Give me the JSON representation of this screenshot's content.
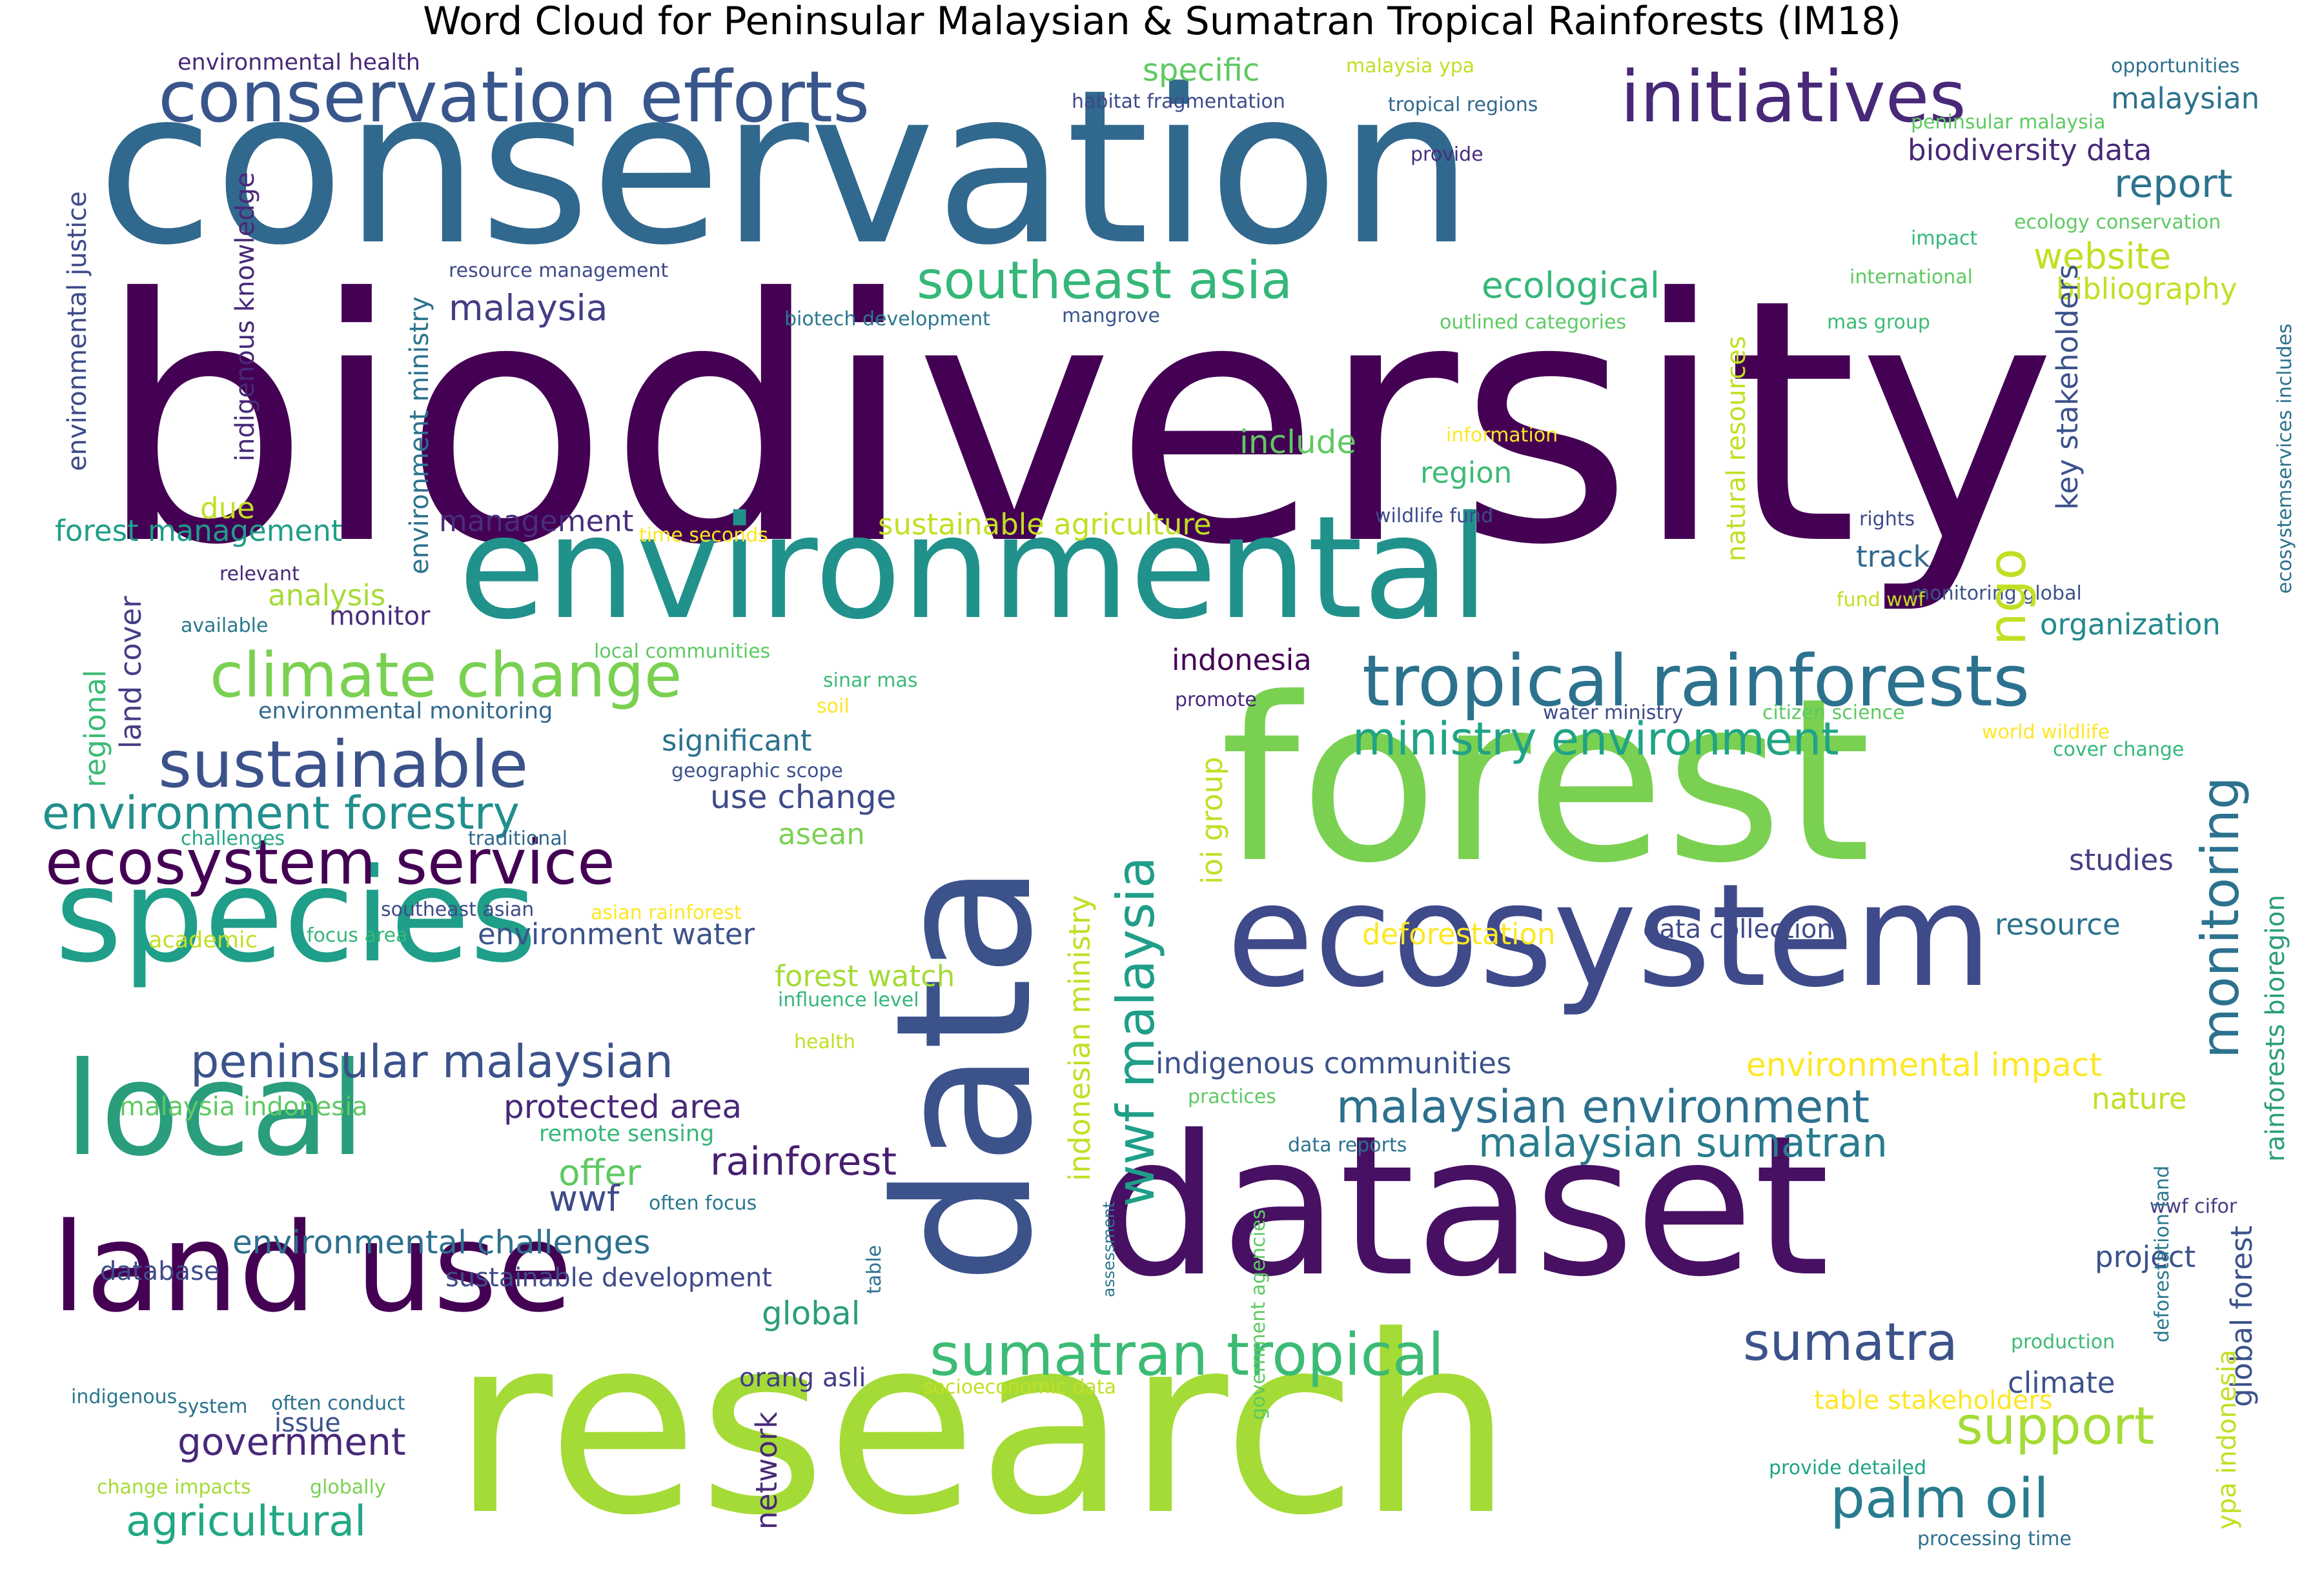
{
  "title": "Word Cloud for Peninsular Malaysian & Sumatran Tropical Rainforests (IM18)",
  "colormap": "viridis",
  "words": [
    {
      "text": "biodiversity",
      "color": "#440154",
      "vertical": false
    },
    {
      "text": "conservation",
      "color": "#31688e",
      "vertical": false
    },
    {
      "text": "research",
      "color": "#a5db36",
      "vertical": false
    },
    {
      "text": "forest",
      "color": "#7ad151",
      "vertical": false
    },
    {
      "text": "dataset",
      "color": "#471063",
      "vertical": false
    },
    {
      "text": "data",
      "color": "#3b528b",
      "vertical": true
    },
    {
      "text": "environmental",
      "color": "#21918c",
      "vertical": false
    },
    {
      "text": "ecosystem",
      "color": "#3e4a89",
      "vertical": false
    },
    {
      "text": "species",
      "color": "#1f9e89",
      "vertical": false
    },
    {
      "text": "land use",
      "color": "#440154",
      "vertical": false
    },
    {
      "text": "local",
      "color": "#2a9d7c",
      "vertical": false
    },
    {
      "text": "conservation efforts",
      "color": "#39568c",
      "vertical": false
    },
    {
      "text": "initiatives",
      "color": "#482878",
      "vertical": false
    },
    {
      "text": "tropical rainforests",
      "color": "#2c728e",
      "vertical": false
    },
    {
      "text": "sustainable",
      "color": "#3b528b",
      "vertical": false
    },
    {
      "text": "southeast asia",
      "color": "#35b779",
      "vertical": false
    },
    {
      "text": "climate change",
      "color": "#7ad151",
      "vertical": false
    },
    {
      "text": "ecosystem service",
      "color": "#440154",
      "vertical": false
    },
    {
      "text": "environment forestry",
      "color": "#218f8d",
      "vertical": false
    },
    {
      "text": "monitoring",
      "color": "#2c728e",
      "vertical": true
    },
    {
      "text": "wwf malaysia",
      "color": "#1f9e89",
      "vertical": true
    },
    {
      "text": "ministry environment",
      "color": "#20a386",
      "vertical": false
    },
    {
      "text": "sumatran tropical",
      "color": "#3cbb75",
      "vertical": false
    },
    {
      "text": "peninsular malaysian",
      "color": "#3b528b",
      "vertical": false
    },
    {
      "text": "malaysian environment",
      "color": "#2d708e",
      "vertical": false
    },
    {
      "text": "malaysian sumatran",
      "color": "#287c8e",
      "vertical": false
    },
    {
      "text": "palm oil",
      "color": "#287c8e",
      "vertical": false
    },
    {
      "text": "sumatra",
      "color": "#3b528b",
      "vertical": false
    },
    {
      "text": "support",
      "color": "#a5db36",
      "vertical": false
    },
    {
      "text": "rainforest",
      "color": "#481f70",
      "vertical": false
    },
    {
      "text": "agricultural",
      "color": "#22a884",
      "vertical": false
    },
    {
      "text": "government",
      "color": "#482878",
      "vertical": false
    },
    {
      "text": "specific",
      "color": "#5ec962",
      "vertical": false
    },
    {
      "text": "malaysia ypa",
      "color": "#c2df23",
      "vertical": false
    },
    {
      "text": "opportunities",
      "color": "#2d708e",
      "vertical": false
    },
    {
      "text": "habitat fragmentation",
      "color": "#3e4a89",
      "vertical": false
    },
    {
      "text": "tropical regions",
      "color": "#31688e",
      "vertical": false
    },
    {
      "text": "malaysian",
      "color": "#2c728e",
      "vertical": false
    },
    {
      "text": "peninsular malaysia",
      "color": "#5ec962",
      "vertical": false
    },
    {
      "text": "provide",
      "color": "#472d7b",
      "vertical": false
    },
    {
      "text": "biodiversity data",
      "color": "#482878",
      "vertical": false
    },
    {
      "text": "report",
      "color": "#2c728e",
      "vertical": false
    },
    {
      "text": "impact",
      "color": "#35b779",
      "vertical": false
    },
    {
      "text": "ecology conservation",
      "color": "#5ec962",
      "vertical": false
    },
    {
      "text": "website",
      "color": "#c2df23",
      "vertical": false
    },
    {
      "text": "international",
      "color": "#5ec962",
      "vertical": false
    },
    {
      "text": "bibliography",
      "color": "#c2df23",
      "vertical": false
    },
    {
      "text": "mas group",
      "color": "#3cbb75",
      "vertical": false
    },
    {
      "text": "ecological",
      "color": "#35b779",
      "vertical": false
    },
    {
      "text": "outlined categories",
      "color": "#5ec962",
      "vertical": false
    },
    {
      "text": "malaysia",
      "color": "#433e85",
      "vertical": false
    },
    {
      "text": "environmental health",
      "color": "#482878",
      "vertical": false
    },
    {
      "text": "resource management",
      "color": "#3e4a89",
      "vertical": false
    },
    {
      "text": "biotech development",
      "color": "#2a788e",
      "vertical": false
    },
    {
      "text": "mangrove",
      "color": "#38588c",
      "vertical": false
    },
    {
      "text": "information",
      "color": "#fde725",
      "vertical": false
    },
    {
      "text": "include",
      "color": "#5ec962",
      "vertical": false
    },
    {
      "text": "region",
      "color": "#3cbb75",
      "vertical": false
    },
    {
      "text": "wildlife fund",
      "color": "#3e4a89",
      "vertical": false
    },
    {
      "text": "rights",
      "color": "#3e4a89",
      "vertical": false
    },
    {
      "text": "track",
      "color": "#31688e",
      "vertical": false
    },
    {
      "text": "monitoring global",
      "color": "#3b528b",
      "vertical": false
    },
    {
      "text": "fund wwf",
      "color": "#c2df23",
      "vertical": false
    },
    {
      "text": "organization",
      "color": "#23898e",
      "vertical": false
    },
    {
      "text": "management",
      "color": "#472d7b",
      "vertical": false
    },
    {
      "text": "sustainable agriculture",
      "color": "#c2df23",
      "vertical": false
    },
    {
      "text": "time seconds",
      "color": "#fde725",
      "vertical": false
    },
    {
      "text": "forest management",
      "color": "#1f9e89",
      "vertical": false
    },
    {
      "text": "relevant",
      "color": "#482878",
      "vertical": false
    },
    {
      "text": "analysis",
      "color": "#a5db36",
      "vertical": false
    },
    {
      "text": "monitor",
      "color": "#472d7b",
      "vertical": false
    },
    {
      "text": "available",
      "color": "#2a788e",
      "vertical": false
    },
    {
      "text": "due",
      "color": "#c2df23",
      "vertical": false
    },
    {
      "text": "local communities",
      "color": "#5ec962",
      "vertical": false
    },
    {
      "text": "sinar mas",
      "color": "#3cbb75",
      "vertical": false
    },
    {
      "text": "soil",
      "color": "#fde725",
      "vertical": false
    },
    {
      "text": "indonesia",
      "color": "#440154",
      "vertical": false
    },
    {
      "text": "promote",
      "color": "#482878",
      "vertical": false
    },
    {
      "text": "environmental monitoring",
      "color": "#31688e",
      "vertical": false
    },
    {
      "text": "water ministry",
      "color": "#3e4a89",
      "vertical": false
    },
    {
      "text": "citizen science",
      "color": "#5ec962",
      "vertical": false
    },
    {
      "text": "world wildlife",
      "color": "#fde725",
      "vertical": false
    },
    {
      "text": "cover change",
      "color": "#35b779",
      "vertical": false
    },
    {
      "text": "significant",
      "color": "#2c728e",
      "vertical": false
    },
    {
      "text": "geographic scope",
      "color": "#3b528b",
      "vertical": false
    },
    {
      "text": "use change",
      "color": "#3e4a89",
      "vertical": false
    },
    {
      "text": "challenges",
      "color": "#22a884",
      "vertical": false
    },
    {
      "text": "traditional",
      "color": "#31688e",
      "vertical": false
    },
    {
      "text": "asean",
      "color": "#7ad151",
      "vertical": false
    },
    {
      "text": "studies",
      "color": "#433e85",
      "vertical": false
    },
    {
      "text": "southeast asian",
      "color": "#3e4a89",
      "vertical": false
    },
    {
      "text": "asian rainforest",
      "color": "#fde725",
      "vertical": false
    },
    {
      "text": "academic",
      "color": "#c2df23",
      "vertical": false
    },
    {
      "text": "focus area",
      "color": "#35b779",
      "vertical": false
    },
    {
      "text": "environment water",
      "color": "#3b528b",
      "vertical": false
    },
    {
      "text": "deforestation",
      "color": "#fde725",
      "vertical": false
    },
    {
      "text": "data collection",
      "color": "#3e4a89",
      "vertical": false
    },
    {
      "text": "resource",
      "color": "#2c728e",
      "vertical": false
    },
    {
      "text": "forest watch",
      "color": "#a5db36",
      "vertical": false
    },
    {
      "text": "influence level",
      "color": "#35b779",
      "vertical": false
    },
    {
      "text": "health",
      "color": "#c2df23",
      "vertical": false
    },
    {
      "text": "indigenous communities",
      "color": "#3b528b",
      "vertical": false
    },
    {
      "text": "environmental impact",
      "color": "#fde725",
      "vertical": false
    },
    {
      "text": "malaysia indonesia",
      "color": "#5ec962",
      "vertical": false
    },
    {
      "text": "protected area",
      "color": "#482878",
      "vertical": false
    },
    {
      "text": "practices",
      "color": "#5ec962",
      "vertical": false
    },
    {
      "text": "nature",
      "color": "#c2df23",
      "vertical": false
    },
    {
      "text": "remote sensing",
      "color": "#35b779",
      "vertical": false
    },
    {
      "text": "data reports",
      "color": "#2c728e",
      "vertical": false
    },
    {
      "text": "offer",
      "color": "#5ec962",
      "vertical": false
    },
    {
      "text": "wwf",
      "color": "#3e4a89",
      "vertical": false
    },
    {
      "text": "often focus",
      "color": "#2a788e",
      "vertical": false
    },
    {
      "text": "wwf cifor",
      "color": "#433e85",
      "vertical": false
    },
    {
      "text": "environmental challenges",
      "color": "#2d708e",
      "vertical": false
    },
    {
      "text": "database",
      "color": "#3e4a89",
      "vertical": false
    },
    {
      "text": "sustainable development",
      "color": "#3e4a89",
      "vertical": false
    },
    {
      "text": "project",
      "color": "#3b528b",
      "vertical": false
    },
    {
      "text": "global",
      "color": "#2a9d7c",
      "vertical": false
    },
    {
      "text": "production",
      "color": "#3cbb75",
      "vertical": false
    },
    {
      "text": "orang asli",
      "color": "#433e85",
      "vertical": false
    },
    {
      "text": "climate",
      "color": "#3b528b",
      "vertical": false
    },
    {
      "text": "indigenous",
      "color": "#2a788e",
      "vertical": false
    },
    {
      "text": "system",
      "color": "#2d708e",
      "vertical": false
    },
    {
      "text": "often conduct",
      "color": "#2c728e",
      "vertical": false
    },
    {
      "text": "issue",
      "color": "#3b528b",
      "vertical": false
    },
    {
      "text": "socioeconomic data",
      "color": "#c2df23",
      "vertical": false
    },
    {
      "text": "table stakeholders",
      "color": "#fde725",
      "vertical": false
    },
    {
      "text": "change impacts",
      "color": "#a5db36",
      "vertical": false
    },
    {
      "text": "globally",
      "color": "#7ad151",
      "vertical": false
    },
    {
      "text": "provide detailed",
      "color": "#20a386",
      "vertical": false
    },
    {
      "text": "processing time",
      "color": "#2d708e",
      "vertical": false
    },
    {
      "text": "environmental justice",
      "color": "#3e4a89",
      "vertical": true
    },
    {
      "text": "indigenous knowledge",
      "color": "#482878",
      "vertical": true
    },
    {
      "text": "environment ministry",
      "color": "#2c728e",
      "vertical": true
    },
    {
      "text": "regional",
      "color": "#3cbb75",
      "vertical": true
    },
    {
      "text": "land cover",
      "color": "#433e85",
      "vertical": true
    },
    {
      "text": "ngo",
      "color": "#c2df23",
      "vertical": true
    },
    {
      "text": "natural resources",
      "color": "#c2df23",
      "vertical": true
    },
    {
      "text": "key stakeholders",
      "color": "#3b528b",
      "vertical": true
    },
    {
      "text": "ecosystemservices includes",
      "color": "#2c728e",
      "vertical": true
    },
    {
      "text": "ioi group",
      "color": "#c2df23",
      "vertical": true
    },
    {
      "text": "indonesian ministry",
      "color": "#c2df23",
      "vertical": true
    },
    {
      "text": "rainforests bioregion",
      "color": "#2a9d7c",
      "vertical": true
    },
    {
      "text": "global forest",
      "color": "#3b528b",
      "vertical": true
    },
    {
      "text": "ypa indonesia",
      "color": "#c2df23",
      "vertical": true
    },
    {
      "text": "deforestation land",
      "color": "#2a788e",
      "vertical": true
    },
    {
      "text": "assessment",
      "color": "#2a788e",
      "vertical": true
    },
    {
      "text": "government agencies",
      "color": "#5ec962",
      "vertical": true
    },
    {
      "text": "table",
      "color": "#2c728e",
      "vertical": true
    },
    {
      "text": "network",
      "color": "#482878",
      "vertical": true
    }
  ]
}
